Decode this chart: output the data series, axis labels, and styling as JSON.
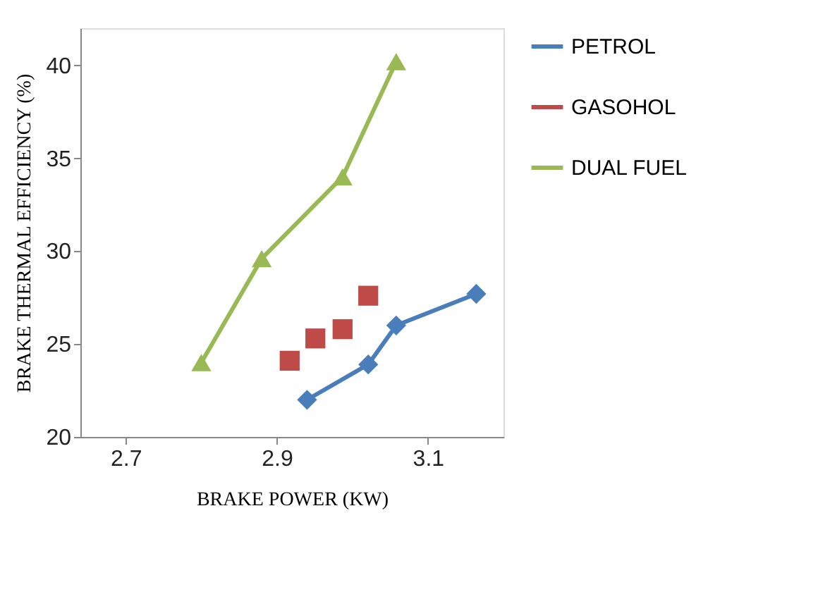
{
  "chart_data": {
    "type": "line",
    "xlabel": "BRAKE POWER (KW)",
    "ylabel": "BRAKE THERMAL EFFICIENCY (%)",
    "xlim": [
      2.64,
      3.2
    ],
    "xticks": [
      2.7,
      2.9,
      3.1
    ],
    "ylim": [
      20,
      42
    ],
    "yticks": [
      20,
      25,
      30,
      35,
      40
    ],
    "grid": false,
    "legend": "right",
    "series": [
      {
        "name": "PETROL",
        "color": "#4a7ebb",
        "marker": "diamond",
        "x": [
          2.94,
          3.021,
          3.058,
          3.164
        ],
        "values": [
          22.0,
          23.9,
          26.0,
          27.7
        ]
      },
      {
        "name": "GASOHOL",
        "color": "#be4b48",
        "marker": "square",
        "type": "scatter",
        "x": [
          2.917,
          2.951,
          2.987,
          3.021
        ],
        "values": [
          24.1,
          25.3,
          25.8,
          27.6
        ]
      },
      {
        "name": "DUAL FUEL",
        "color": "#98b954",
        "marker": "triangle",
        "x": [
          2.8,
          2.88,
          2.987,
          3.058
        ],
        "values": [
          24.0,
          29.6,
          34.0,
          40.2
        ]
      }
    ]
  }
}
